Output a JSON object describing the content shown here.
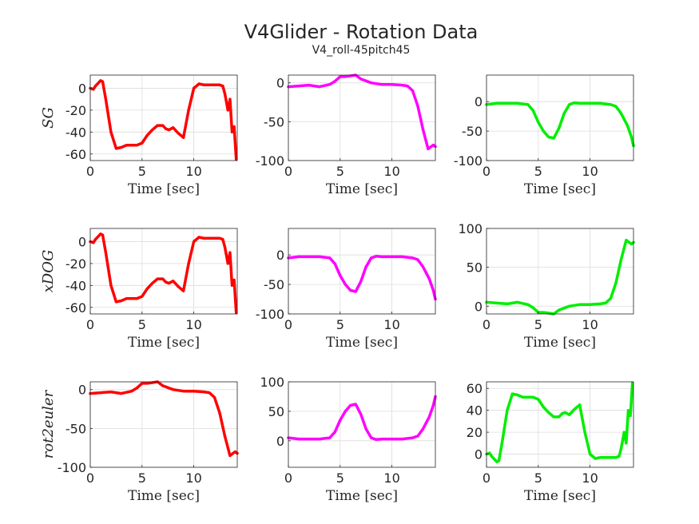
{
  "figure": {
    "title": "V4Glider - Rotation Data",
    "subtitle": "V4_roll-45pitch45"
  },
  "chart_data": [
    {
      "type": "line",
      "row": 0,
      "col": 0,
      "ylabel": "SG",
      "xlabel": "Time [sec]",
      "color": "#ff0000",
      "xlim": [
        0,
        14.2
      ],
      "ylim": [
        -66,
        12
      ],
      "xticks": [
        0,
        5,
        10
      ],
      "yticks": [
        0,
        -20,
        -40,
        -60
      ],
      "x": [
        0,
        0.3,
        0.5,
        0.8,
        1.0,
        1.2,
        1.5,
        2.0,
        2.5,
        3.0,
        3.5,
        4.0,
        4.5,
        5.0,
        5.5,
        6.0,
        6.5,
        7.0,
        7.3,
        7.6,
        8.0,
        8.5,
        9.0,
        9.5,
        10.0,
        10.5,
        11.0,
        11.5,
        12.0,
        12.5,
        12.8,
        13.0,
        13.3,
        13.5,
        13.7,
        13.9,
        14.0,
        14.1
      ],
      "values": [
        0,
        -1,
        2,
        5,
        7,
        6,
        -10,
        -40,
        -55,
        -54,
        -52,
        -52,
        -52,
        -50,
        -43,
        -38,
        -34,
        -34,
        -37,
        -38,
        -36,
        -41,
        -45,
        -20,
        0,
        4,
        3,
        3,
        3,
        3,
        2,
        -5,
        -20,
        -10,
        -40,
        -35,
        -50,
        -65
      ]
    },
    {
      "type": "line",
      "row": 0,
      "col": 1,
      "ylabel": "",
      "xlabel": "Time [sec]",
      "color": "#ff00ff",
      "xlim": [
        0,
        14.2
      ],
      "ylim": [
        -100,
        10
      ],
      "xticks": [
        0,
        5,
        10
      ],
      "yticks": [
        0,
        -50,
        -100
      ],
      "x": [
        0,
        1,
        2,
        3,
        4,
        4.5,
        5,
        5.5,
        6,
        6.5,
        7,
        8,
        9,
        10,
        11,
        11.5,
        12,
        12.5,
        13,
        13.5,
        14,
        14.2
      ],
      "values": [
        -5,
        -4,
        -3,
        -5,
        -2,
        2,
        8,
        8,
        9,
        10,
        5,
        0,
        -2,
        -2,
        -3,
        -4,
        -10,
        -30,
        -60,
        -85,
        -80,
        -82
      ]
    },
    {
      "type": "line",
      "row": 0,
      "col": 2,
      "ylabel": "",
      "xlabel": "Time [sec]",
      "color": "#00ee00",
      "xlim": [
        0,
        14.2
      ],
      "ylim": [
        -100,
        45
      ],
      "xticks": [
        0,
        5,
        10
      ],
      "yticks": [
        0,
        -50,
        -100
      ],
      "x": [
        0,
        1,
        2,
        3,
        4,
        4.5,
        5,
        5.5,
        6,
        6.5,
        7,
        7.5,
        8,
        8.5,
        9,
        10,
        11,
        12,
        12.5,
        13,
        13.3,
        13.6,
        13.8,
        14,
        14.2
      ],
      "values": [
        -5,
        -3,
        -3,
        -3,
        -5,
        -15,
        -35,
        -50,
        -60,
        -62,
        -45,
        -20,
        -5,
        -2,
        -3,
        -3,
        -3,
        -5,
        -8,
        -20,
        -30,
        -40,
        -50,
        -60,
        -75
      ]
    },
    {
      "type": "line",
      "row": 1,
      "col": 0,
      "ylabel": "xDOG",
      "xlabel": "Time [sec]",
      "color": "#ff0000",
      "xlim": [
        0,
        14.2
      ],
      "ylim": [
        -66,
        12
      ],
      "xticks": [
        0,
        5,
        10
      ],
      "yticks": [
        0,
        -20,
        -40,
        -60
      ],
      "x": [
        0,
        0.3,
        0.5,
        0.8,
        1.0,
        1.2,
        1.5,
        2.0,
        2.5,
        3.0,
        3.5,
        4.0,
        4.5,
        5.0,
        5.5,
        6.0,
        6.5,
        7.0,
        7.3,
        7.6,
        8.0,
        8.5,
        9.0,
        9.5,
        10.0,
        10.5,
        11.0,
        11.5,
        12.0,
        12.5,
        12.8,
        13.0,
        13.3,
        13.5,
        13.7,
        13.9,
        14.0,
        14.1
      ],
      "values": [
        0,
        -1,
        2,
        5,
        7,
        6,
        -10,
        -40,
        -55,
        -54,
        -52,
        -52,
        -52,
        -50,
        -43,
        -38,
        -34,
        -34,
        -37,
        -38,
        -36,
        -41,
        -45,
        -20,
        0,
        4,
        3,
        3,
        3,
        3,
        2,
        -5,
        -20,
        -10,
        -40,
        -35,
        -50,
        -65
      ]
    },
    {
      "type": "line",
      "row": 1,
      "col": 1,
      "ylabel": "",
      "xlabel": "Time [sec]",
      "color": "#ff00ff",
      "xlim": [
        0,
        14.2
      ],
      "ylim": [
        -100,
        45
      ],
      "xticks": [
        0,
        5,
        10
      ],
      "yticks": [
        0,
        -50,
        -100
      ],
      "x": [
        0,
        1,
        2,
        3,
        4,
        4.5,
        5,
        5.5,
        6,
        6.5,
        7,
        7.5,
        8,
        8.5,
        9,
        10,
        11,
        12,
        12.5,
        13,
        13.3,
        13.6,
        13.8,
        14,
        14.2
      ],
      "values": [
        -5,
        -3,
        -3,
        -3,
        -5,
        -15,
        -35,
        -50,
        -60,
        -62,
        -45,
        -20,
        -5,
        -2,
        -3,
        -3,
        -3,
        -5,
        -8,
        -20,
        -30,
        -40,
        -50,
        -60,
        -75
      ]
    },
    {
      "type": "line",
      "row": 1,
      "col": 2,
      "ylabel": "",
      "xlabel": "Time [sec]",
      "color": "#00ee00",
      "xlim": [
        0,
        14.2
      ],
      "ylim": [
        -10,
        100
      ],
      "xticks": [
        0,
        5,
        10
      ],
      "yticks": [
        0,
        50,
        100
      ],
      "x": [
        0,
        1,
        2,
        3,
        4,
        4.5,
        5,
        5.5,
        6,
        6.5,
        7,
        8,
        9,
        10,
        11,
        11.5,
        12,
        12.5,
        13,
        13.5,
        14,
        14.2
      ],
      "values": [
        5,
        4,
        3,
        5,
        2,
        -2,
        -8,
        -8,
        -9,
        -10,
        -5,
        0,
        2,
        2,
        3,
        4,
        10,
        30,
        60,
        85,
        80,
        82
      ]
    },
    {
      "type": "line",
      "row": 2,
      "col": 0,
      "ylabel": "rot2euler",
      "xlabel": "Time [sec]",
      "color": "#ff0000",
      "xlim": [
        0,
        14.2
      ],
      "ylim": [
        -100,
        10
      ],
      "xticks": [
        0,
        5,
        10
      ],
      "yticks": [
        0,
        -50,
        -100
      ],
      "x": [
        0,
        1,
        2,
        3,
        4,
        4.5,
        5,
        5.5,
        6,
        6.5,
        7,
        8,
        9,
        10,
        11,
        11.5,
        12,
        12.5,
        13,
        13.5,
        14,
        14.2
      ],
      "values": [
        -5,
        -4,
        -3,
        -5,
        -2,
        2,
        8,
        8,
        9,
        10,
        5,
        0,
        -2,
        -2,
        -3,
        -4,
        -10,
        -30,
        -60,
        -85,
        -80,
        -82
      ]
    },
    {
      "type": "line",
      "row": 2,
      "col": 1,
      "ylabel": "",
      "xlabel": "Time [sec]",
      "color": "#ff00ff",
      "xlim": [
        0,
        14.2
      ],
      "ylim": [
        -45,
        100
      ],
      "xticks": [
        0,
        5,
        10
      ],
      "yticks": [
        0,
        50,
        100
      ],
      "x": [
        0,
        1,
        2,
        3,
        4,
        4.5,
        5,
        5.5,
        6,
        6.5,
        7,
        7.5,
        8,
        8.5,
        9,
        10,
        11,
        12,
        12.5,
        13,
        13.3,
        13.6,
        13.8,
        14,
        14.2
      ],
      "values": [
        5,
        3,
        3,
        3,
        5,
        15,
        35,
        50,
        60,
        62,
        45,
        20,
        5,
        2,
        3,
        3,
        3,
        5,
        8,
        20,
        30,
        40,
        50,
        60,
        75
      ]
    },
    {
      "type": "line",
      "row": 2,
      "col": 2,
      "ylabel": "",
      "xlabel": "Time [sec]",
      "color": "#00ee00",
      "xlim": [
        0,
        14.2
      ],
      "ylim": [
        -12,
        66
      ],
      "xticks": [
        0,
        5,
        10
      ],
      "yticks": [
        0,
        20,
        40,
        60
      ],
      "x": [
        0,
        0.3,
        0.5,
        0.8,
        1.0,
        1.2,
        1.5,
        2.0,
        2.5,
        3.0,
        3.5,
        4.0,
        4.5,
        5.0,
        5.5,
        6.0,
        6.5,
        7.0,
        7.3,
        7.6,
        8.0,
        8.5,
        9.0,
        9.5,
        10.0,
        10.5,
        11.0,
        11.5,
        12.0,
        12.5,
        12.8,
        13.0,
        13.3,
        13.5,
        13.7,
        13.9,
        14.0,
        14.1
      ],
      "values": [
        0,
        1,
        -2,
        -5,
        -7,
        -6,
        10,
        40,
        55,
        54,
        52,
        52,
        52,
        50,
        43,
        38,
        34,
        34,
        37,
        38,
        36,
        41,
        45,
        20,
        0,
        -4,
        -3,
        -3,
        -3,
        -3,
        -2,
        5,
        20,
        10,
        40,
        35,
        50,
        65
      ]
    }
  ]
}
